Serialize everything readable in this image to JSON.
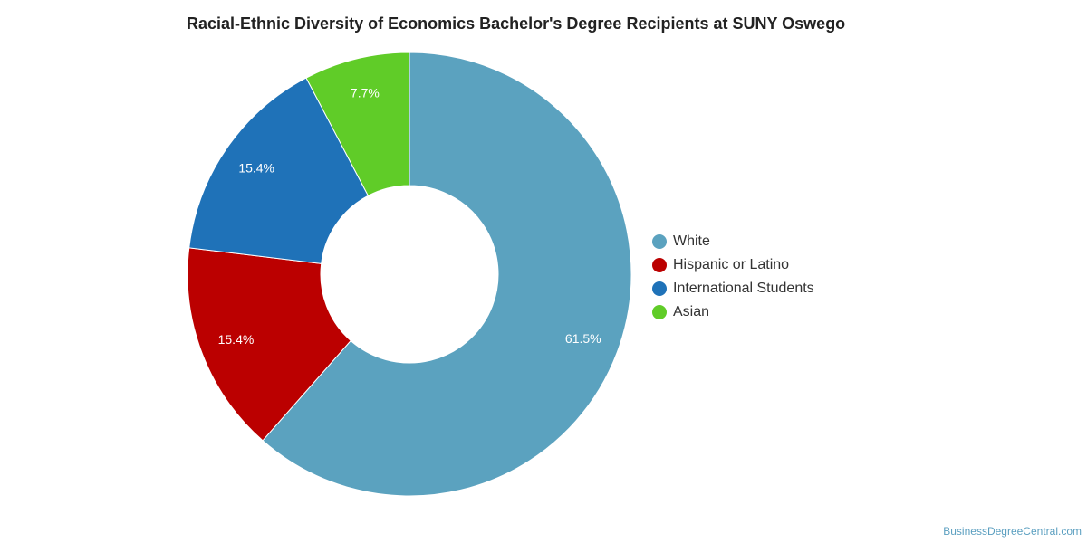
{
  "chart_data": {
    "type": "pie",
    "title": "Racial-Ethnic Diversity of Economics Bachelor's Degree Recipients at SUNY Oswego",
    "donut": true,
    "legend_position": "right",
    "slices": [
      {
        "name": "White",
        "value": 61.5,
        "label": "61.5%",
        "color": "#5ba2bf"
      },
      {
        "name": "Hispanic or Latino",
        "value": 15.4,
        "label": "15.4%",
        "color": "#bb0000"
      },
      {
        "name": "International Students",
        "value": 15.4,
        "label": "15.4%",
        "color": "#1f72b8"
      },
      {
        "name": "Asian",
        "value": 7.7,
        "label": "7.7%",
        "color": "#60cc28"
      }
    ]
  },
  "footer": {
    "source_text": "BusinessDegreeCentral.com"
  }
}
